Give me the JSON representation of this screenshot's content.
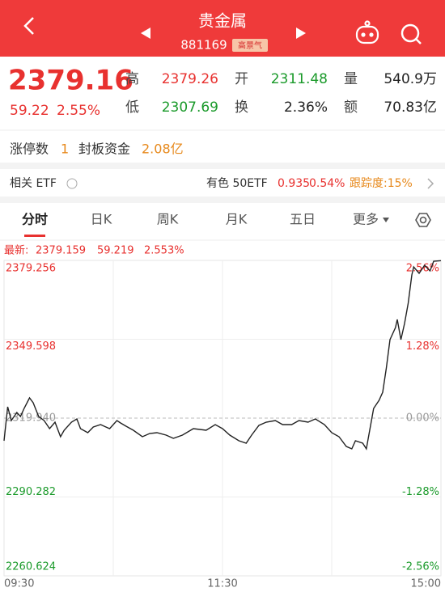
{
  "header": {
    "title": "贵金属",
    "code": "881169",
    "badge": "高景气"
  },
  "quote": {
    "price": "2379.16",
    "change": "59.22",
    "change_pct": "2.55%",
    "items": [
      {
        "label": "高",
        "value": "2379.26",
        "color": "#e8312f"
      },
      {
        "label": "开",
        "value": "2311.48",
        "color": "#1a9a2a"
      },
      {
        "label": "量",
        "value": "540.9万",
        "color": "#222222"
      },
      {
        "label": "低",
        "value": "2307.69",
        "color": "#1a9a2a"
      },
      {
        "label": "换",
        "value": "2.36%",
        "color": "#222222"
      },
      {
        "label": "额",
        "value": "70.83亿",
        "color": "#222222"
      }
    ]
  },
  "limit": {
    "count_label": "涨停数",
    "count": "1",
    "fund_label": "封板资金",
    "fund": "2.08亿"
  },
  "etf": {
    "label": "相关 ETF",
    "name": "有色 50ETF",
    "price": "0.935",
    "pct": "0.54%",
    "tracking": "跟踪度:15%"
  },
  "tabs": [
    "分时",
    "日K",
    "周K",
    "月K",
    "五日",
    "更多"
  ],
  "latest": {
    "label": "最新:",
    "price": "2379.159",
    "change": "59.219",
    "pct": "2.553%"
  },
  "chart_data": {
    "type": "line",
    "x": [
      0,
      2,
      4,
      7,
      9,
      11,
      14,
      16,
      19,
      22,
      25,
      28,
      31,
      33,
      37,
      40,
      42,
      46,
      49,
      53,
      58,
      62,
      64,
      67,
      71,
      76,
      80,
      84,
      89,
      93,
      98,
      104,
      111,
      116,
      120,
      124,
      129,
      133,
      136,
      140,
      144,
      149,
      153,
      158,
      162,
      167,
      171,
      176,
      180,
      184,
      188,
      191,
      193,
      197,
      199,
      201,
      203,
      206,
      208,
      210,
      212,
      215,
      216,
      218,
      220,
      222,
      224,
      225,
      228,
      231,
      234,
      236,
      240
    ],
    "series": [
      {
        "color": "#222222",
        "values": [
          2311.42,
          2324.2,
          2319.03,
          2322.07,
          2320.55,
          2323.59,
          2327.54,
          2325.72,
          2320.55,
          2319.03,
          2315.99,
          2318.42,
          2312.94,
          2315.38,
          2318.42,
          2319.64,
          2315.99,
          2314.46,
          2316.59,
          2317.51,
          2315.99,
          2319.03,
          2318.11,
          2316.9,
          2315.38,
          2312.94,
          2314.16,
          2314.46,
          2313.55,
          2312.34,
          2313.55,
          2315.99,
          2315.38,
          2317.51,
          2315.99,
          2313.55,
          2311.42,
          2310.51,
          2313.55,
          2317.2,
          2318.42,
          2319.03,
          2317.51,
          2317.51,
          2319.03,
          2318.42,
          2319.64,
          2317.51,
          2314.46,
          2312.94,
          2309.29,
          2308.38,
          2311.42,
          2310.51,
          2308.38,
          2315.99,
          2323.59,
          2326.63,
          2329.67,
          2338.8,
          2349.45,
          2354.01,
          2357.05,
          2349.45,
          2355.53,
          2363.13,
          2373.78,
          2376.82,
          2374.39,
          2377.43,
          2375.3,
          2378.95,
          2379.16
        ]
      }
    ],
    "xlim": [
      0,
      240
    ],
    "xticks": [
      {
        "value": 0,
        "label": "09:30"
      },
      {
        "value": 120,
        "label": "11:30"
      },
      {
        "value": 240,
        "label": "15:00"
      }
    ],
    "ylim": [
      2260.624,
      2379.256
    ],
    "yticks": [
      2379.256,
      2349.598,
      {
        "value": 2319.94,
        "label": "2319.940"
      },
      2290.282,
      2260.624
    ],
    "y2lim": [
      -2.56,
      2.56
    ],
    "y2ticks": [
      {
        "value": 2.56,
        "label": "2.56%"
      },
      {
        "value": 1.28,
        "label": "1.28%"
      },
      {
        "value": 0,
        "label": "0.00%"
      },
      {
        "value": -1.28,
        "label": "-1.28%"
      },
      {
        "value": -2.56,
        "label": "-2.56%"
      }
    ]
  }
}
